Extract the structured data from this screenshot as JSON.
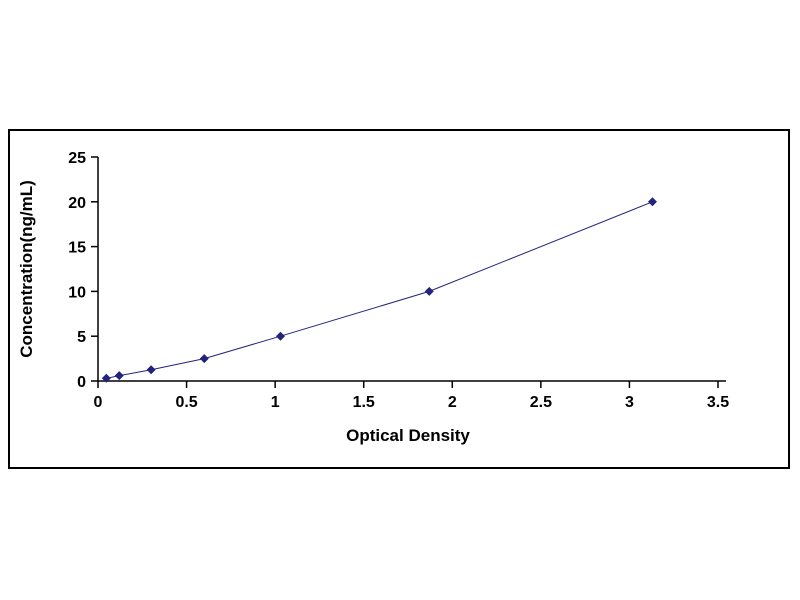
{
  "chart_data": {
    "type": "line",
    "title": "",
    "xlabel": "Optical Density",
    "ylabel": "Concentration(ng/mL)",
    "x": [
      0.047,
      0.12,
      0.3,
      0.6,
      1.03,
      1.87,
      3.13
    ],
    "y": [
      0.3,
      0.6,
      1.25,
      2.5,
      5,
      10,
      20
    ],
    "xlim": [
      0,
      3.5
    ],
    "ylim": [
      0,
      25
    ],
    "x_tick_values": [
      0,
      0.5,
      1,
      1.5,
      2,
      2.5,
      3,
      3.5
    ],
    "x_tick_labels": [
      "0",
      "0.5",
      "1",
      "1.5",
      "2",
      "2.5",
      "3",
      "3.5"
    ],
    "y_tick_values": [
      0,
      5,
      10,
      15,
      20,
      25
    ],
    "y_tick_labels": [
      "0",
      "5",
      "10",
      "15",
      "20",
      "25"
    ],
    "grid": false,
    "legend": null,
    "marker": "diamond",
    "marker_color": "#23237d",
    "line_color": "#23237d",
    "axis_color": "#000000",
    "frame_color": "#000000",
    "background_color": "#ffffff"
  }
}
